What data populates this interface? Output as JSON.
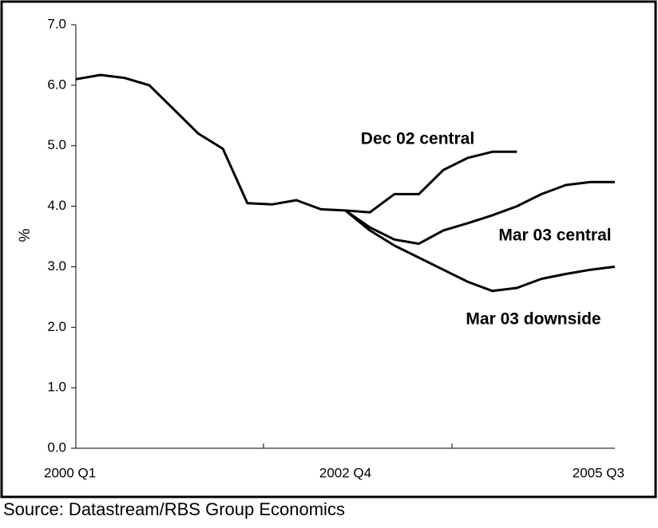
{
  "chart_data": {
    "type": "line",
    "y_label": "%",
    "source": "Source: Datastream/RBS Group Economics",
    "categories": [
      "2000 Q1",
      null,
      null,
      null,
      null,
      null,
      null,
      null,
      null,
      null,
      null,
      "2002 Q4",
      null,
      null,
      null,
      null,
      null,
      null,
      null,
      null,
      null,
      null,
      "2005 Q3"
    ],
    "series": [
      {
        "color": "#000000",
        "values": [
          6.1,
          6.17,
          6.12,
          6.0,
          5.6,
          5.2,
          4.95,
          4.05,
          4.03,
          4.1,
          3.95,
          3.93,
          null,
          null,
          null,
          null,
          null,
          null,
          null,
          null,
          null,
          null,
          null
        ]
      },
      {
        "name": "Dec 02 central",
        "color": "#000000",
        "values": [
          null,
          null,
          null,
          null,
          null,
          null,
          null,
          null,
          null,
          null,
          null,
          3.93,
          3.9,
          4.2,
          4.2,
          4.6,
          4.8,
          4.9,
          4.9,
          null,
          null,
          null,
          null
        ]
      },
      {
        "name": "Mar 03 central",
        "color": "#000000",
        "values": [
          null,
          null,
          null,
          null,
          null,
          null,
          null,
          null,
          null,
          null,
          null,
          3.93,
          3.65,
          3.45,
          3.38,
          3.6,
          3.72,
          3.85,
          4.0,
          4.2,
          4.35,
          4.4,
          4.4
        ]
      },
      {
        "name": "Mar 03 downside",
        "color": "#000000",
        "values": [
          null,
          null,
          null,
          null,
          null,
          null,
          null,
          null,
          null,
          null,
          null,
          3.93,
          3.6,
          3.35,
          3.15,
          2.95,
          2.75,
          2.6,
          2.65,
          2.8,
          2.88,
          2.95,
          3.0
        ]
      }
    ],
    "ylim": [
      0,
      7
    ],
    "yticks": [
      {
        "value": 0,
        "label": "0.0"
      },
      {
        "value": 1,
        "label": "1.0"
      },
      {
        "value": 2,
        "label": "2.0"
      },
      {
        "value": 3,
        "label": "3.0"
      },
      {
        "value": 4,
        "label": "4.0"
      },
      {
        "value": 5,
        "label": "5.0"
      },
      {
        "value": 6,
        "label": "6.0"
      },
      {
        "value": 7,
        "label": "7.0"
      }
    ]
  }
}
